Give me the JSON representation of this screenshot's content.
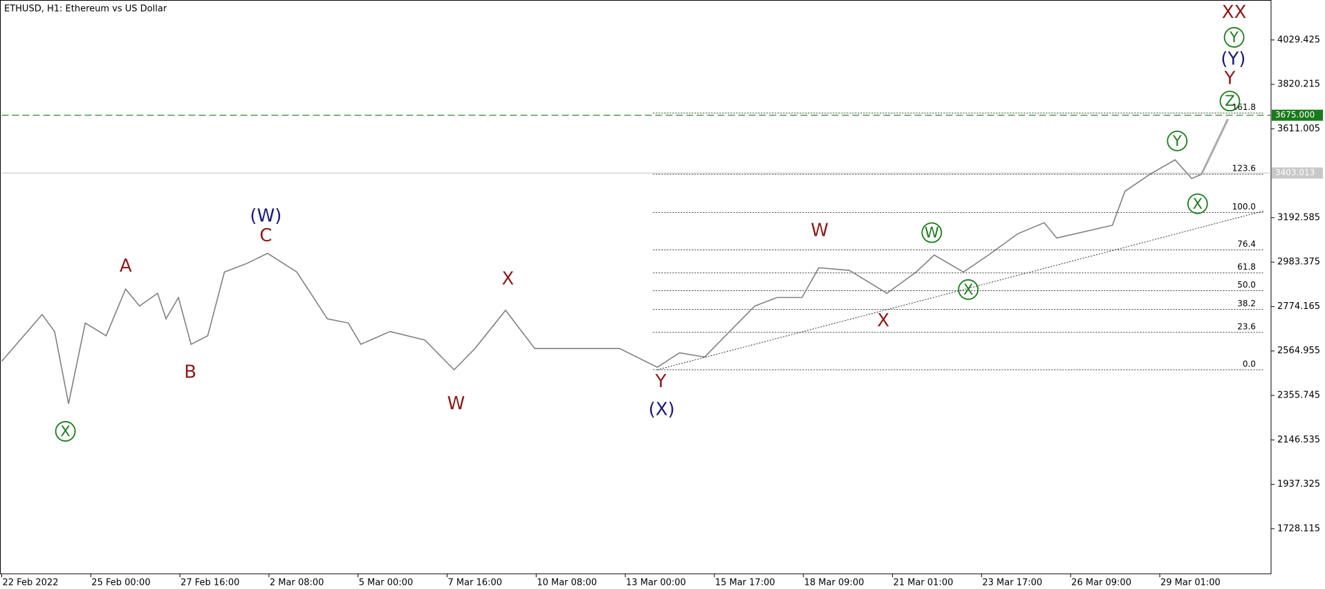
{
  "chart_data": {
    "type": "line",
    "title": "ETHUSD, H1:  Ethereum vs US Dollar",
    "x": [
      0,
      29,
      38,
      48,
      60,
      75,
      89,
      99,
      112,
      118,
      127,
      136,
      148,
      160,
      176,
      191,
      212,
      234,
      249,
      258,
      279,
      304,
      325,
      340,
      362,
      383,
      413,
      444,
      471,
      487,
      505,
      523,
      541,
      557,
      575,
      587,
      609,
      636,
      657,
      670,
      691,
      709,
      730,
      749,
      758,
      798,
      807,
      825,
      843,
      855,
      862
    ],
    "series": [
      {
        "name": "ETHUSD",
        "color": "#808080",
        "values": [
          2516.5,
          2736.6,
          2656.6,
          2316.4,
          2696.6,
          2636.6,
          2856.7,
          2776.6,
          2836.7,
          2716.6,
          2816.7,
          2596.5,
          2636.6,
          2936.7,
          2976.8,
          3024.8,
          2936.7,
          2716.6,
          2696.6,
          2596.5,
          2656.6,
          2616.6,
          2476.5,
          2576.5,
          2756.6,
          2576.5,
          2576.5,
          2576.5,
          2488.5,
          2556.5,
          2536.5,
          2656.6,
          2776.6,
          2816.7,
          2816.7,
          2956.8,
          2944.7,
          2836.7,
          2936.7,
          3016.8,
          2936.7,
          3016.8,
          3116.9,
          3168.9,
          3096.8,
          3156.9,
          3317.0,
          3397.0,
          3465.1,
          3377.0,
          3397.0
        ]
      }
    ],
    "xlim": [
      0,
      912
    ],
    "ylim": [
      1516,
      4217.5
    ],
    "xticks": [
      {
        "value": 0,
        "label": "22 Feb 2022"
      },
      {
        "value": 64,
        "label": "25 Feb 00:00"
      },
      {
        "value": 128,
        "label": "27 Feb 16:00"
      },
      {
        "value": 192,
        "label": "2 Mar 08:00"
      },
      {
        "value": 256,
        "label": "5 Mar 00:00"
      },
      {
        "value": 320,
        "label": "7 Mar 16:00"
      },
      {
        "value": 384,
        "label": "10 Mar 08:00"
      },
      {
        "value": 448,
        "label": "13 Mar 00:00"
      },
      {
        "value": 512,
        "label": "15 Mar 17:00"
      },
      {
        "value": 576,
        "label": "18 Mar 09:00"
      },
      {
        "value": 640,
        "label": "21 Mar 01:00"
      },
      {
        "value": 704,
        "label": "23 Mar 17:00"
      },
      {
        "value": 768,
        "label": "26 Mar 09:00"
      },
      {
        "value": 832,
        "label": "29 Mar 01:00"
      }
    ],
    "yticks": [
      4029.425,
      3820.215,
      3611.005,
      3192.585,
      2983.375,
      2774.165,
      2564.955,
      2355.745,
      2146.535,
      1937.325,
      1728.115
    ],
    "target_level": {
      "value": 3675,
      "label": "3675.000",
      "color": "#1a7a1a"
    },
    "current_price": 3403.013,
    "fibonacci": {
      "start": 468,
      "end": 907,
      "levels": [
        {
          "label": "0.0",
          "price": 2476.5
        },
        {
          "label": "23.6",
          "price": 2652.6
        },
        {
          "label": "38.2",
          "price": 2760.7
        },
        {
          "label": "50.0",
          "price": 2848.7
        },
        {
          "label": "61.8",
          "price": 2932.7
        },
        {
          "label": "76.4",
          "price": 3040.8
        },
        {
          "label": "100.0",
          "price": 3216.9
        },
        {
          "label": "123.6",
          "price": 3397.0
        },
        {
          "label": "161.8",
          "price": 3685.2
        }
      ]
    },
    "trend_line": {
      "x": [
        471,
        907
      ],
      "values": [
        2476.5,
        3225
      ]
    },
    "projection": {
      "x": [
        862,
        881
      ],
      "values": [
        3397,
        3657
      ]
    },
    "annotations": [
      {
        "text": "XX",
        "color": "#8b1a1a",
        "circled": false
      },
      {
        "text": "Y",
        "color": "#1a7a1a",
        "circled": true
      },
      {
        "text": "(Y)",
        "color": "#1a1a7a",
        "circled": false
      },
      {
        "text": "Y",
        "color": "#8b1a1a",
        "circled": false
      },
      {
        "text": "Z",
        "color": "#1a7a1a",
        "circled": true
      },
      {
        "text": "Y",
        "color": "#1a7a1a",
        "circled": true
      },
      {
        "text": "X",
        "color": "#1a7a1a",
        "circled": true
      },
      {
        "text": "W",
        "color": "#8b1a1a",
        "circled": false
      },
      {
        "text": "W",
        "color": "#1a7a1a",
        "circled": true
      },
      {
        "text": "X",
        "color": "#1a7a1a",
        "circled": true
      },
      {
        "text": "X",
        "color": "#8b1a1a",
        "circled": false
      },
      {
        "text": "(W)",
        "color": "#1a1a7a",
        "circled": false
      },
      {
        "text": "C",
        "color": "#8b1a1a",
        "circled": false
      },
      {
        "text": "A",
        "color": "#8b1a1a",
        "circled": false
      },
      {
        "text": "B",
        "color": "#8b1a1a",
        "circled": false
      },
      {
        "text": "X",
        "color": "#1a7a1a",
        "circled": true
      },
      {
        "text": "W",
        "color": "#8b1a1a",
        "circled": false
      },
      {
        "text": "X",
        "color": "#8b1a1a",
        "circled": false
      },
      {
        "text": "Y",
        "color": "#8b1a1a",
        "circled": false
      },
      {
        "text": "(X)",
        "color": "#1a1a7a",
        "circled": false
      }
    ]
  }
}
